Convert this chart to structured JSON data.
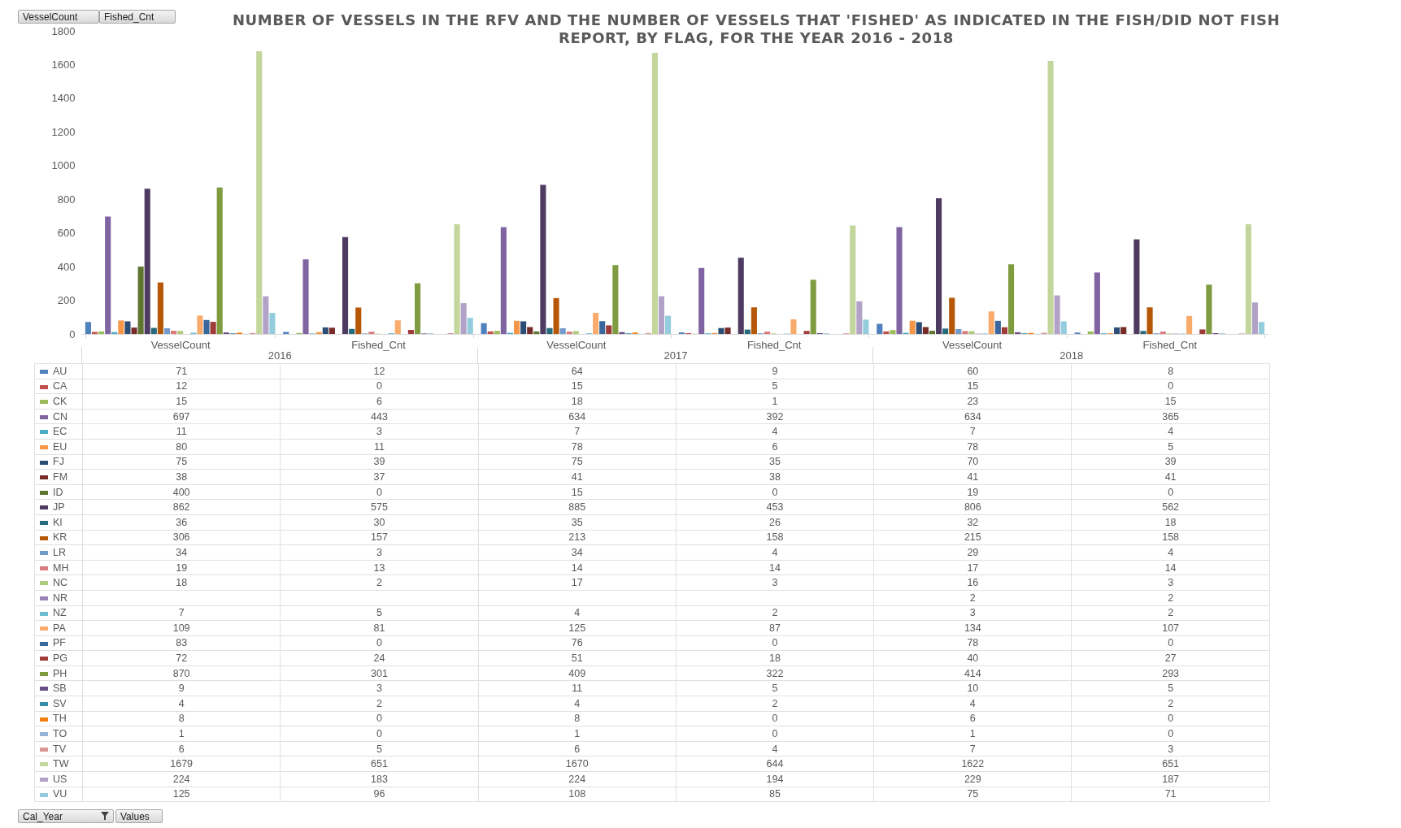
{
  "chart_data": {
    "type": "bar",
    "title": "NUMBER OF VESSELS IN THE RFV AND THE NUMBER OF VESSELS THAT 'FISHED' AS INDICATED IN THE FISH/DID NOT FISH REPORT, BY FLAG, FOR THE YEAR 2016 - 2018",
    "categories": [
      "VesselCount",
      "Fished_Cnt",
      "VesselCount",
      "Fished_Cnt",
      "VesselCount",
      "Fished_Cnt"
    ],
    "annotations": [
      "2016",
      "2017",
      "2018",
      "VesselCount",
      "Fished_Cnt",
      "Cal_Year",
      "Values"
    ],
    "ylim": [
      0,
      1800
    ],
    "yticks": [
      0,
      200,
      400,
      600,
      800,
      1000,
      1200,
      1400,
      1600,
      1800
    ],
    "grid": false,
    "legend": "bottom",
    "data_labels": true,
    "series": [
      {
        "name": "AU",
        "color": "#4f81bd",
        "values": [
          71,
          12,
          64,
          9,
          60,
          8
        ]
      },
      {
        "name": "CA",
        "color": "#c0504d",
        "values": [
          12,
          0,
          15,
          5,
          15,
          0
        ]
      },
      {
        "name": "CK",
        "color": "#9bbb59",
        "values": [
          15,
          6,
          18,
          1,
          23,
          15
        ]
      },
      {
        "name": "CN",
        "color": "#8064a2",
        "values": [
          697,
          443,
          634,
          392,
          634,
          365
        ]
      },
      {
        "name": "EC",
        "color": "#4bacc6",
        "values": [
          11,
          3,
          7,
          4,
          7,
          4
        ]
      },
      {
        "name": "EU",
        "color": "#f79646",
        "values": [
          80,
          11,
          78,
          6,
          78,
          5
        ]
      },
      {
        "name": "FJ",
        "color": "#2c4d75",
        "values": [
          75,
          39,
          75,
          35,
          70,
          39
        ]
      },
      {
        "name": "FM",
        "color": "#772c2a",
        "values": [
          38,
          37,
          41,
          38,
          41,
          41
        ]
      },
      {
        "name": "ID",
        "color": "#5f7530",
        "values": [
          400,
          0,
          15,
          0,
          19,
          0
        ]
      },
      {
        "name": "JP",
        "color": "#4d3b62",
        "values": [
          862,
          575,
          885,
          453,
          806,
          562
        ]
      },
      {
        "name": "KI",
        "color": "#276a7c",
        "values": [
          36,
          30,
          35,
          26,
          32,
          18
        ]
      },
      {
        "name": "KR",
        "color": "#b65708",
        "values": [
          306,
          157,
          213,
          158,
          215,
          158
        ]
      },
      {
        "name": "LR",
        "color": "#729aca",
        "values": [
          34,
          3,
          34,
          4,
          29,
          4
        ]
      },
      {
        "name": "MH",
        "color": "#d9797b",
        "values": [
          19,
          13,
          14,
          14,
          17,
          14
        ]
      },
      {
        "name": "NC",
        "color": "#afc97a",
        "values": [
          18,
          2,
          17,
          3,
          16,
          3
        ]
      },
      {
        "name": "NR",
        "color": "#9983b5",
        "values": [
          null,
          null,
          null,
          null,
          2,
          2
        ]
      },
      {
        "name": "NZ",
        "color": "#6fbdd1",
        "values": [
          7,
          5,
          4,
          2,
          3,
          2
        ]
      },
      {
        "name": "PA",
        "color": "#f9ab6b",
        "values": [
          109,
          81,
          125,
          87,
          134,
          107
        ]
      },
      {
        "name": "PF",
        "color": "#3a679c",
        "values": [
          83,
          0,
          76,
          0,
          78,
          0
        ]
      },
      {
        "name": "PG",
        "color": "#9f3b38",
        "values": [
          72,
          24,
          51,
          18,
          40,
          27
        ]
      },
      {
        "name": "PH",
        "color": "#7f9c40",
        "values": [
          870,
          301,
          409,
          322,
          414,
          293
        ]
      },
      {
        "name": "SB",
        "color": "#664f83",
        "values": [
          9,
          3,
          11,
          5,
          10,
          5
        ]
      },
      {
        "name": "SV",
        "color": "#358ea6",
        "values": [
          4,
          2,
          4,
          2,
          4,
          2
        ]
      },
      {
        "name": "TH",
        "color": "#f37d0e",
        "values": [
          8,
          0,
          8,
          0,
          6,
          0
        ]
      },
      {
        "name": "TO",
        "color": "#95b3d7",
        "values": [
          1,
          0,
          1,
          0,
          1,
          0
        ]
      },
      {
        "name": "TV",
        "color": "#d99694",
        "values": [
          6,
          5,
          6,
          4,
          7,
          3
        ]
      },
      {
        "name": "TW",
        "color": "#c3d69b",
        "values": [
          1679,
          651,
          1670,
          644,
          1622,
          651
        ]
      },
      {
        "name": "US",
        "color": "#b3a2c7",
        "values": [
          224,
          183,
          224,
          194,
          229,
          187
        ]
      },
      {
        "name": "VU",
        "color": "#93cddd",
        "values": [
          125,
          96,
          108,
          85,
          75,
          71
        ]
      }
    ]
  }
}
